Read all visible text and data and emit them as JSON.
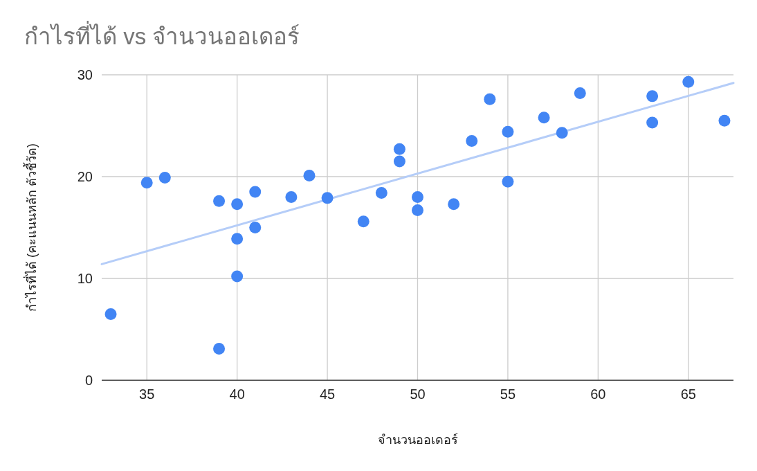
{
  "chart_data": {
    "type": "scatter",
    "title": "กำไรที่ได้ vs จำนวนออเดอร์",
    "xlabel": "จำนวนออเดอร์",
    "ylabel": "กำไรที่ได้ (คะแนนหลัก ตัวชี้วัด)",
    "xlim": [
      32.5,
      67.5
    ],
    "xticks": [
      35,
      40,
      45,
      50,
      55,
      60,
      65
    ],
    "ylim": [
      0,
      30
    ],
    "yticks": [
      0,
      10,
      20,
      30
    ],
    "grid": true,
    "series": [
      {
        "type": "scatter",
        "color": "#4285f4",
        "x": [
          33,
          35,
          36,
          39,
          39,
          40,
          40,
          40,
          41,
          41,
          43,
          44,
          45,
          47,
          48,
          49,
          49,
          50,
          50,
          52,
          53,
          54,
          55,
          55,
          57,
          58,
          59,
          63,
          63,
          65,
          67
        ],
        "values": [
          6.5,
          19.4,
          19.9,
          17.6,
          3.1,
          17.3,
          13.9,
          10.2,
          18.5,
          15.0,
          18.0,
          20.1,
          17.9,
          15.6,
          18.4,
          22.7,
          21.5,
          18.0,
          16.7,
          17.3,
          23.5,
          27.6,
          24.4,
          19.5,
          25.8,
          24.3,
          28.2,
          27.9,
          25.3,
          29.3,
          25.5
        ]
      },
      {
        "type": "line",
        "color": "#b5cdf8",
        "x": [
          32.5,
          67.5
        ],
        "values": [
          11.4,
          29.2
        ]
      }
    ]
  }
}
